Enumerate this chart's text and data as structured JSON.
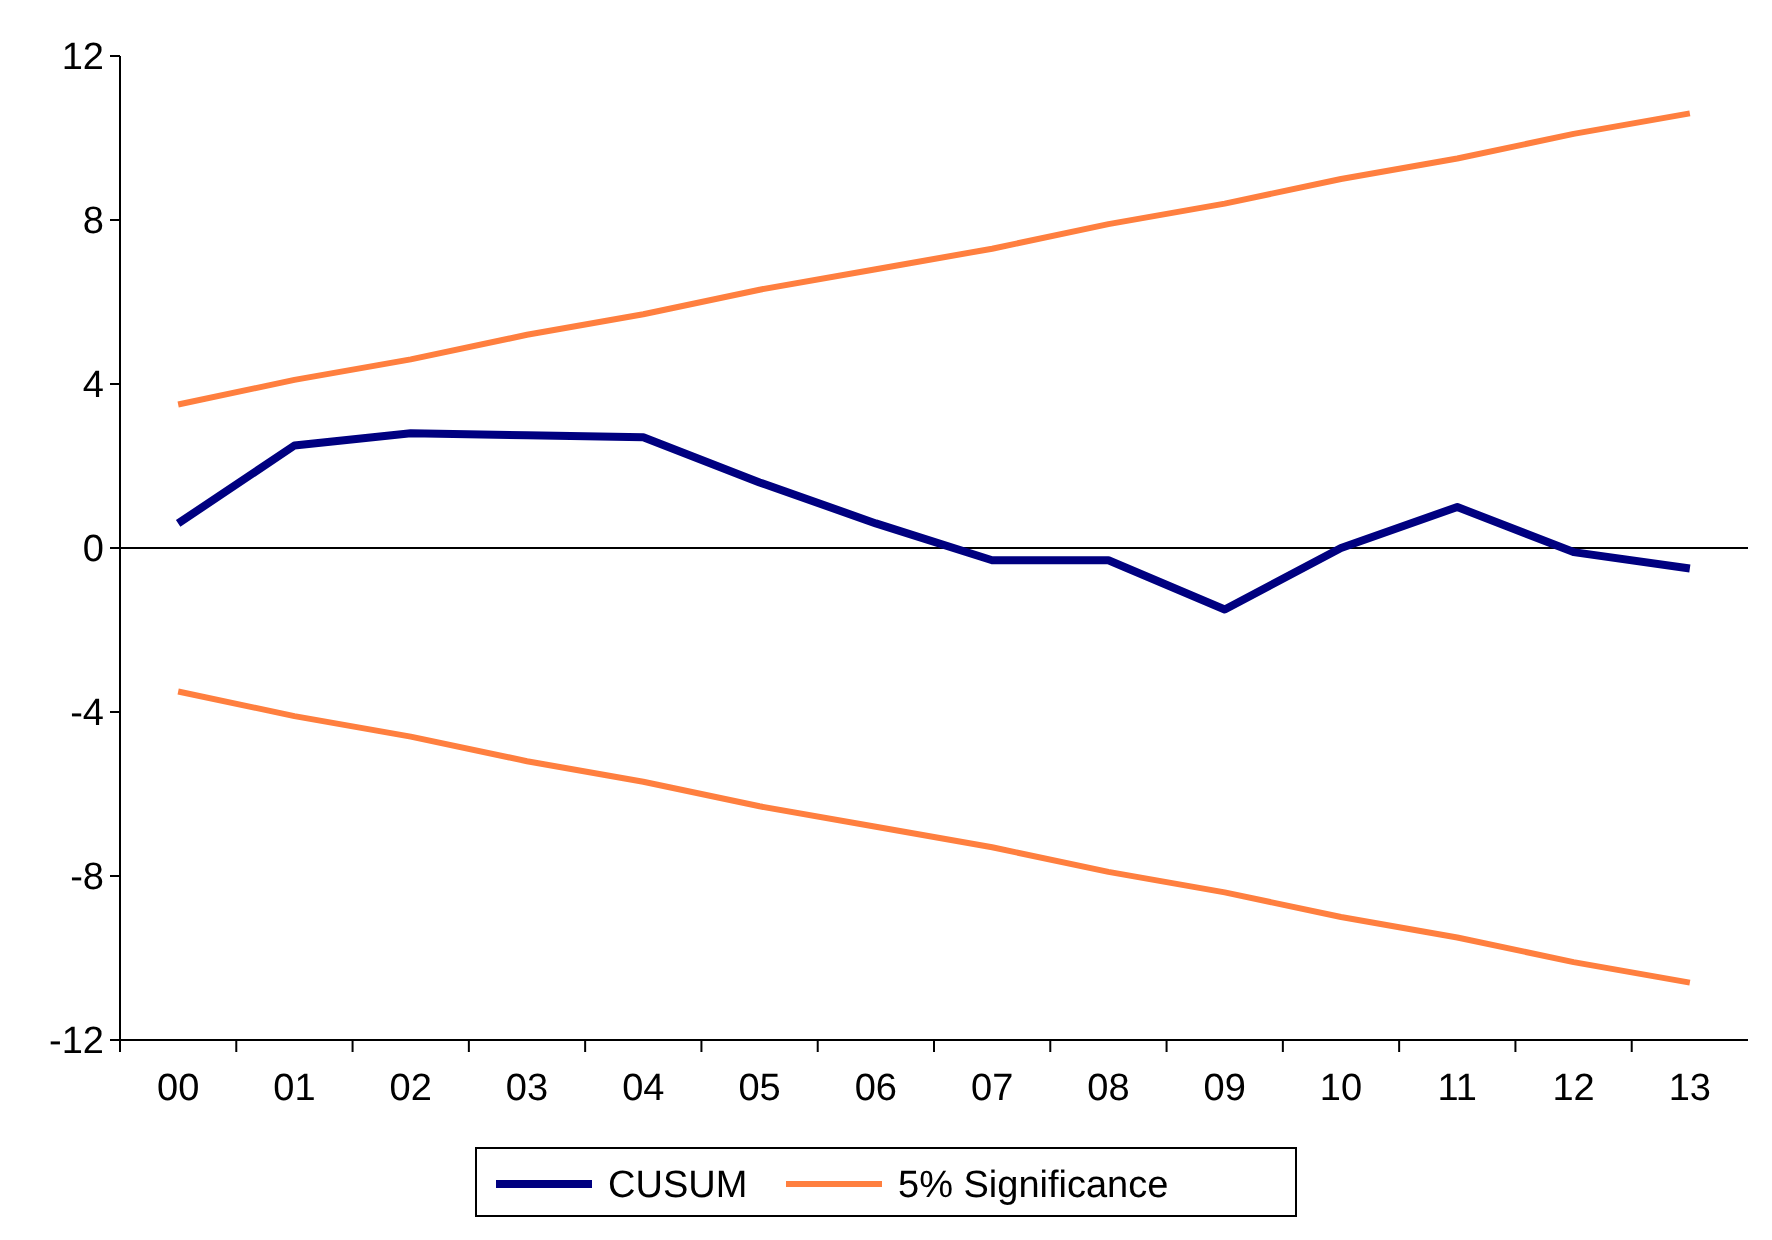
{
  "chart_data": {
    "type": "line",
    "categories": [
      "00",
      "01",
      "02",
      "03",
      "04",
      "05",
      "06",
      "07",
      "08",
      "09",
      "10",
      "11",
      "12",
      "13"
    ],
    "series": [
      {
        "name": "CUSUM",
        "color": "#000080",
        "values": [
          0.6,
          2.5,
          2.8,
          2.75,
          2.7,
          1.6,
          0.6,
          -0.3,
          -0.3,
          -1.5,
          0,
          1.0,
          -0.1,
          -0.5
        ]
      },
      {
        "name": "5% Significance",
        "color": "#ff7f3f",
        "values": [
          3.5,
          4.1,
          4.6,
          5.2,
          5.7,
          6.3,
          6.8,
          7.3,
          7.9,
          8.4,
          9.0,
          9.5,
          10.1,
          10.6
        ]
      },
      {
        "color": "#ff7f3f",
        "values": [
          -3.5,
          -4.1,
          -4.6,
          -5.2,
          -5.7,
          -6.3,
          -6.8,
          -7.3,
          -7.9,
          -8.4,
          -9.0,
          -9.5,
          -10.1,
          -10.6
        ]
      }
    ],
    "ylim": [
      -12,
      12
    ],
    "yticks": [
      -12,
      -8,
      -4,
      0,
      4,
      8,
      12
    ],
    "ref_lines": [
      {
        "axis": "y",
        "value": 0,
        "color": "#000000"
      }
    ],
    "grid": false,
    "legend": "bottom",
    "marker": "none",
    "line_style": "solid"
  }
}
